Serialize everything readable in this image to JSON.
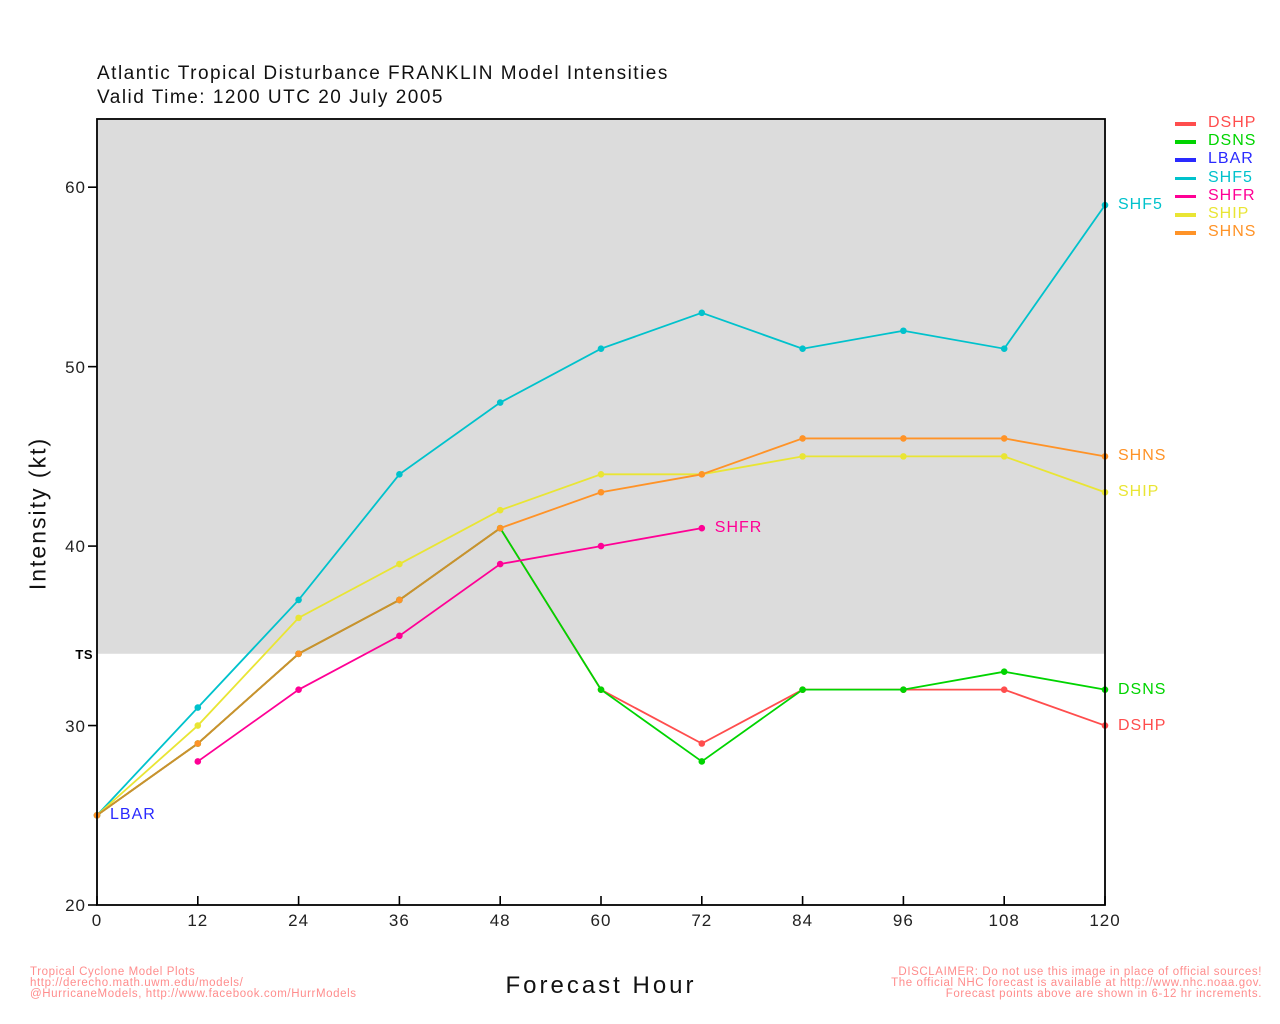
{
  "title": {
    "line1": "Atlantic Tropical Disturbance FRANKLIN Model Intensities",
    "line2": "Valid Time: 1200 UTC 20 July 2005"
  },
  "axes": {
    "x": {
      "label": "Forecast Hour",
      "min": 0,
      "max": 120,
      "ticks": [
        0,
        12,
        24,
        36,
        48,
        60,
        72,
        84,
        96,
        108,
        120
      ]
    },
    "y": {
      "label": "Intensity (kt)",
      "min": 20,
      "max": 63.8,
      "ticks": [
        20,
        30,
        40,
        50,
        60
      ],
      "threshold_label": "TS",
      "threshold_value": 34
    }
  },
  "chart_data": {
    "type": "line",
    "x": [
      0,
      12,
      24,
      36,
      48,
      60,
      72,
      84,
      96,
      108,
      120
    ],
    "series": [
      {
        "name": "DSHP",
        "color": "#ff4d4d",
        "label_pos": "end",
        "values": [
          25,
          29,
          34,
          37,
          41,
          32,
          29,
          32,
          32,
          32,
          30
        ]
      },
      {
        "name": "DSNS",
        "color": "#00d400",
        "label_pos": "end",
        "values": [
          25,
          29,
          34,
          37,
          41,
          32,
          28,
          32,
          32,
          33,
          32
        ]
      },
      {
        "name": "LBAR",
        "color": "#2a2aff",
        "label_pos": "start",
        "values": [
          25,
          null,
          null,
          null,
          null,
          null,
          null,
          null,
          null,
          null,
          null
        ]
      },
      {
        "name": "SHF5",
        "color": "#00c2cc",
        "label_pos": "end",
        "values": [
          25,
          31,
          37,
          44,
          48,
          51,
          53,
          51,
          52,
          51,
          59
        ]
      },
      {
        "name": "SHFR",
        "color": "#ff0095",
        "label_pos": "end",
        "values": [
          null,
          28,
          32,
          35,
          39,
          40,
          41,
          null,
          null,
          null,
          null
        ]
      },
      {
        "name": "SHIP",
        "color": "#e9e534",
        "label_pos": "end",
        "values": [
          25,
          30,
          36,
          39,
          42,
          44,
          44,
          45,
          45,
          45,
          43
        ]
      },
      {
        "name": "SHNS",
        "color": "#ff9327",
        "label_pos": "end",
        "values": [
          25,
          29,
          34,
          37,
          41,
          43,
          44,
          46,
          46,
          46,
          45
        ]
      }
    ],
    "overlap_segment": {
      "series": [
        "DSHP",
        "DSNS",
        "SHNS"
      ],
      "hour_start": 0,
      "hour_end": 48,
      "color": "#c8922f"
    },
    "shaded_region": {
      "from_value": 34,
      "to_value": 63.8,
      "color": "#dcdcdc"
    },
    "legend": [
      "DSHP",
      "DSNS",
      "LBAR",
      "SHF5",
      "SHFR",
      "SHIP",
      "SHNS"
    ],
    "legend_position": "top-right"
  },
  "footer": {
    "left": [
      "Tropical Cyclone Model Plots",
      "http://derecho.math.uwm.edu/models/",
      "@HurricaneModels, http://www.facebook.com/HurrModels"
    ],
    "right": [
      "DISCLAIMER: Do not use this image in place of official sources!",
      "The official NHC forecast is available at http://www.nhc.noaa.gov.",
      "Forecast points above are shown in 6-12 hr increments."
    ],
    "accent_color": "#ff8d8d"
  }
}
